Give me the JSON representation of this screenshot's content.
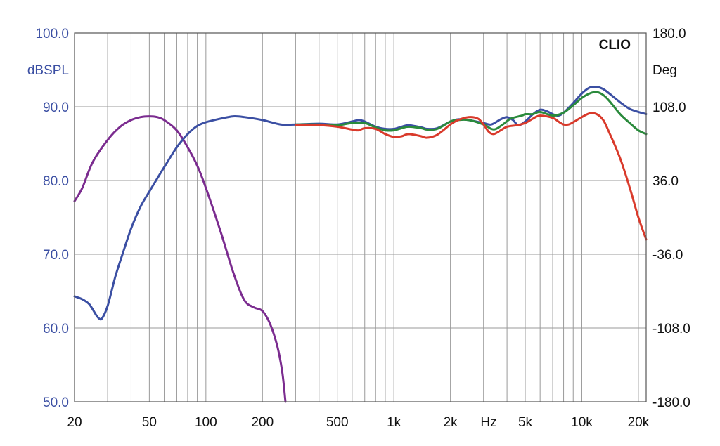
{
  "chart_data": {
    "type": "line",
    "brand": "CLIO",
    "ylabel_left": "dBSPL",
    "ylabel_right": "Deg",
    "xunit_label": "Hz",
    "x_scale": "log",
    "xlim": [
      20,
      22000
    ],
    "ylim": [
      50,
      100
    ],
    "ylim_right": [
      -180,
      180
    ],
    "grid": true,
    "y_ticks": [
      "50.0",
      "60.0",
      "70.0",
      "80.0",
      "90.0",
      "100.0"
    ],
    "y_right_ticks": [
      "-180.0",
      "-108.0",
      "-36.0",
      "36.0",
      "108.0",
      "180.0"
    ],
    "x_tick_labels": [
      {
        "value": 20,
        "label": "20"
      },
      {
        "value": 50,
        "label": "50"
      },
      {
        "value": 100,
        "label": "100"
      },
      {
        "value": 200,
        "label": "200"
      },
      {
        "value": 500,
        "label": "500"
      },
      {
        "value": 1000,
        "label": "1k"
      },
      {
        "value": 2000,
        "label": "2k"
      },
      {
        "value": 5000,
        "label": "5k"
      },
      {
        "value": 10000,
        "label": "10k"
      },
      {
        "value": 20000,
        "label": "20k"
      }
    ],
    "series": [
      {
        "color": "#7b2c8f",
        "points": [
          [
            20,
            77.2
          ],
          [
            22,
            79
          ],
          [
            25,
            82.5
          ],
          [
            30,
            85.5
          ],
          [
            35,
            87.3
          ],
          [
            40,
            88.2
          ],
          [
            45,
            88.6
          ],
          [
            50,
            88.7
          ],
          [
            55,
            88.6
          ],
          [
            60,
            88.2
          ],
          [
            70,
            86.8
          ],
          [
            80,
            84.5
          ],
          [
            90,
            82
          ],
          [
            100,
            79
          ],
          [
            120,
            73
          ],
          [
            140,
            67.5
          ],
          [
            160,
            63.8
          ],
          [
            180,
            62.8
          ],
          [
            200,
            62.3
          ],
          [
            220,
            60.5
          ],
          [
            240,
            57.5
          ],
          [
            255,
            54
          ],
          [
            265,
            50
          ]
        ]
      },
      {
        "color": "#3b4fa3",
        "points": [
          [
            20,
            64.3
          ],
          [
            22,
            63.9
          ],
          [
            24,
            63.2
          ],
          [
            26,
            61.8
          ],
          [
            27,
            61.3
          ],
          [
            28,
            61.3
          ],
          [
            30,
            63
          ],
          [
            33,
            67
          ],
          [
            36,
            70
          ],
          [
            40,
            73.5
          ],
          [
            45,
            76.5
          ],
          [
            50,
            78.5
          ],
          [
            60,
            81.8
          ],
          [
            70,
            84.5
          ],
          [
            80,
            86.3
          ],
          [
            90,
            87.4
          ],
          [
            100,
            87.9
          ],
          [
            120,
            88.4
          ],
          [
            140,
            88.7
          ],
          [
            160,
            88.6
          ],
          [
            200,
            88.2
          ],
          [
            250,
            87.6
          ],
          [
            300,
            87.6
          ],
          [
            400,
            87.7
          ],
          [
            500,
            87.6
          ],
          [
            600,
            88
          ],
          [
            650,
            88.2
          ],
          [
            700,
            88
          ],
          [
            800,
            87.3
          ],
          [
            900,
            87
          ],
          [
            1000,
            87
          ],
          [
            1100,
            87.3
          ],
          [
            1200,
            87.5
          ],
          [
            1400,
            87.2
          ],
          [
            1500,
            87
          ],
          [
            1700,
            87.1
          ],
          [
            2000,
            88
          ],
          [
            2200,
            88.3
          ],
          [
            2500,
            88.2
          ],
          [
            3000,
            87.8
          ],
          [
            3300,
            87.6
          ],
          [
            3700,
            88.3
          ],
          [
            4000,
            88.6
          ],
          [
            4300,
            88.2
          ],
          [
            4600,
            87.5
          ],
          [
            5000,
            88
          ],
          [
            5500,
            89
          ],
          [
            6000,
            89.6
          ],
          [
            6500,
            89.4
          ],
          [
            7000,
            89
          ],
          [
            7500,
            88.8
          ],
          [
            8000,
            89.2
          ],
          [
            9000,
            90.5
          ],
          [
            10000,
            91.8
          ],
          [
            11000,
            92.6
          ],
          [
            12000,
            92.7
          ],
          [
            13000,
            92.4
          ],
          [
            14000,
            91.8
          ],
          [
            16000,
            90.6
          ],
          [
            18000,
            89.7
          ],
          [
            20000,
            89.3
          ],
          [
            22000,
            89
          ]
        ]
      },
      {
        "color": "#2a8a3c",
        "points": [
          [
            300,
            87.6
          ],
          [
            400,
            87.6
          ],
          [
            500,
            87.5
          ],
          [
            600,
            87.8
          ],
          [
            700,
            87.8
          ],
          [
            800,
            87.2
          ],
          [
            900,
            86.8
          ],
          [
            1000,
            86.8
          ],
          [
            1100,
            87.1
          ],
          [
            1200,
            87.3
          ],
          [
            1400,
            87.1
          ],
          [
            1500,
            86.9
          ],
          [
            1700,
            87
          ],
          [
            2000,
            88
          ],
          [
            2200,
            88.2
          ],
          [
            2500,
            88.2
          ],
          [
            3000,
            87.6
          ],
          [
            3300,
            87
          ],
          [
            3500,
            87
          ],
          [
            3800,
            87.6
          ],
          [
            4200,
            88.4
          ],
          [
            4800,
            88.8
          ],
          [
            5000,
            89
          ],
          [
            5500,
            89
          ],
          [
            6000,
            89.3
          ],
          [
            7000,
            88.8
          ],
          [
            8000,
            89.2
          ],
          [
            9000,
            90.2
          ],
          [
            10000,
            91.2
          ],
          [
            11000,
            91.8
          ],
          [
            12000,
            92
          ],
          [
            13000,
            91.6
          ],
          [
            14000,
            90.8
          ],
          [
            16000,
            89
          ],
          [
            18000,
            87.8
          ],
          [
            20000,
            86.8
          ],
          [
            22000,
            86.3
          ]
        ]
      },
      {
        "color": "#d93a2b",
        "points": [
          [
            300,
            87.5
          ],
          [
            400,
            87.5
          ],
          [
            500,
            87.3
          ],
          [
            600,
            86.9
          ],
          [
            650,
            86.8
          ],
          [
            700,
            87.1
          ],
          [
            800,
            87
          ],
          [
            900,
            86.3
          ],
          [
            1000,
            85.9
          ],
          [
            1100,
            86
          ],
          [
            1200,
            86.3
          ],
          [
            1400,
            86
          ],
          [
            1500,
            85.8
          ],
          [
            1700,
            86.2
          ],
          [
            2000,
            87.6
          ],
          [
            2200,
            88.2
          ],
          [
            2500,
            88.6
          ],
          [
            2800,
            88.4
          ],
          [
            3000,
            87.6
          ],
          [
            3200,
            86.6
          ],
          [
            3400,
            86.3
          ],
          [
            3700,
            86.8
          ],
          [
            4000,
            87.3
          ],
          [
            4500,
            87.5
          ],
          [
            5000,
            87.8
          ],
          [
            5500,
            88.4
          ],
          [
            6000,
            88.8
          ],
          [
            7000,
            88.5
          ],
          [
            7500,
            88
          ],
          [
            8000,
            87.6
          ],
          [
            8500,
            87.6
          ],
          [
            9000,
            87.9
          ],
          [
            10000,
            88.6
          ],
          [
            11000,
            89.1
          ],
          [
            12000,
            89
          ],
          [
            13000,
            88.2
          ],
          [
            14000,
            86.5
          ],
          [
            16000,
            83
          ],
          [
            18000,
            79
          ],
          [
            20000,
            75
          ],
          [
            22000,
            72
          ]
        ]
      }
    ]
  }
}
